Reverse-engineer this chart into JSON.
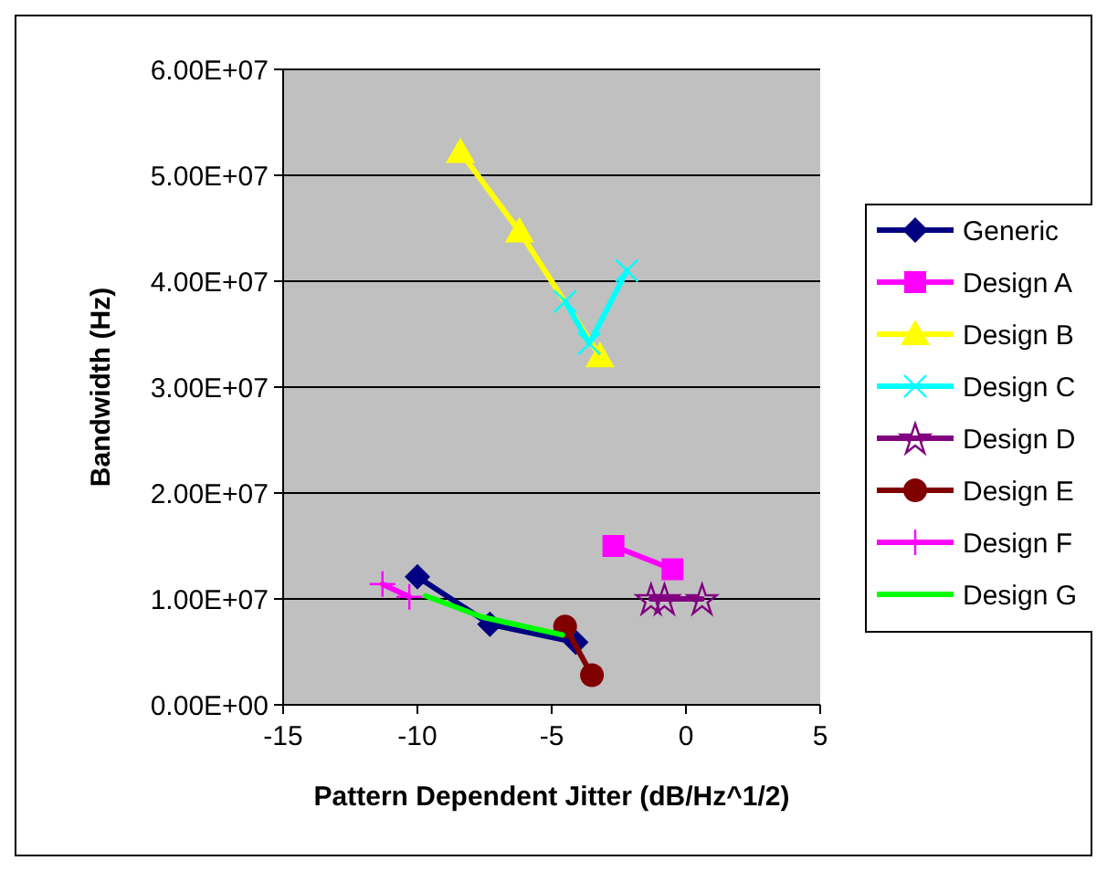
{
  "chart_data": {
    "type": "line",
    "xlabel": "Pattern Dependent Jitter (dB/Hz^1/2)",
    "ylabel": "Bandwidth (Hz)",
    "xlim": [
      -15,
      5
    ],
    "xticks": [
      -15,
      -10,
      -5,
      0,
      5
    ],
    "ylim": [
      0,
      60000000
    ],
    "yticks": [
      {
        "value": 0,
        "label": "0.00E+00"
      },
      {
        "value": 10000000,
        "label": "1.00E+07"
      },
      {
        "value": 20000000,
        "label": "2.00E+07"
      },
      {
        "value": 30000000,
        "label": "3.00E+07"
      },
      {
        "value": 40000000,
        "label": "4.00E+07"
      },
      {
        "value": 50000000,
        "label": "5.00E+07"
      },
      {
        "value": 60000000,
        "label": "6.00E+07"
      }
    ],
    "grid": "y",
    "legend": "right",
    "series": [
      {
        "name": "Generic",
        "color": "#000080",
        "marker": "diamond",
        "x": [
          -10,
          -7.3,
          -4.1
        ],
        "values": [
          12100000,
          7600000,
          5900000
        ]
      },
      {
        "name": "Design A",
        "color": "#ff00ff",
        "marker": "square",
        "x": [
          -2.7,
          -0.5
        ],
        "values": [
          15000000,
          12800000
        ]
      },
      {
        "name": "Design B",
        "color": "#ffff00",
        "marker": "triangle",
        "x": [
          -8.4,
          -6.2,
          -3.2
        ],
        "values": [
          52200000,
          44700000,
          32900000
        ]
      },
      {
        "name": "Design C",
        "color": "#00ffff",
        "marker": "cross",
        "x": [
          -4.5,
          -3.6,
          -2.2
        ],
        "values": [
          38100000,
          34100000,
          41000000
        ]
      },
      {
        "name": "Design D",
        "color": "#800080",
        "marker": "star",
        "x": [
          -1.3,
          -0.8,
          0.6
        ],
        "values": [
          10000000,
          10000000,
          10000000
        ]
      },
      {
        "name": "Design E",
        "color": "#800000",
        "marker": "circle",
        "x": [
          -4.5,
          -3.5
        ],
        "values": [
          7400000,
          2800000
        ]
      },
      {
        "name": "Design F",
        "color": "#ff00ff",
        "marker": "plus",
        "x": [
          -11.3,
          -10.3
        ],
        "values": [
          11400000,
          10200000
        ]
      },
      {
        "name": "Design G",
        "color": "#00ff00",
        "marker": "none",
        "x": [
          -9.7,
          -7.6,
          -4.6
        ],
        "values": [
          10300000,
          8300000,
          6600000
        ]
      }
    ]
  }
}
